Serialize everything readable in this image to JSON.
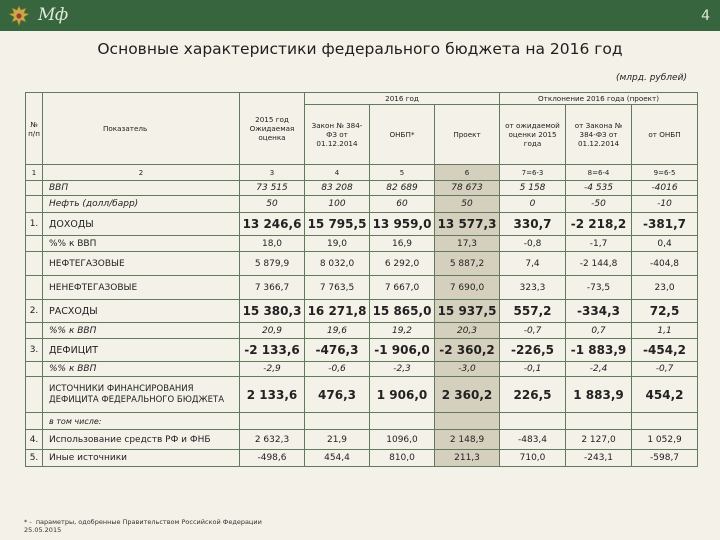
{
  "header": {
    "logo": "Мф",
    "page_number": "4"
  },
  "title": "Основные характеристики федерального бюджета на 2016 год",
  "units": "(млрд. рублей)",
  "table": {
    "col_no": "№ п/п",
    "col_indicator": "Показатель",
    "col_2015": "2015 год Ожидаемая оценка",
    "group_2016": "2016 год",
    "col_law": "Закон № 384-ФЗ от 01.12.2014",
    "col_onbp": "ОНБП*",
    "col_project": "Проект",
    "group_dev": "Отклонение 2016 года (проект)",
    "col_dev_est": "от ожидаемой оценки 2015 года",
    "col_dev_law": "от Закона № 384-ФЗ от 01.12.2014",
    "col_dev_onbp": "от ОНБП",
    "num_row": [
      "1",
      "2",
      "3",
      "4",
      "5",
      "6",
      "7=6-3",
      "8=6-4",
      "9=6-5"
    ],
    "rows": [
      {
        "no": "",
        "label": "ВВП",
        "v": [
          "73 515",
          "83 208",
          "82 689",
          "78 673",
          "5 158",
          "-4 535",
          "-4016"
        ]
      },
      {
        "no": "",
        "label": "Нефть (долл/барр)",
        "v": [
          "50",
          "100",
          "60",
          "50",
          "0",
          "-50",
          "-10"
        ]
      },
      {
        "no": "1.",
        "label": "ДОХОДЫ",
        "v": [
          "13 246,6",
          "15 795,5",
          "13 959,0",
          "13 577,3",
          "330,7",
          "-2 218,2",
          "-381,7"
        ]
      },
      {
        "no": "",
        "label": "%% к ВВП",
        "v": [
          "18,0",
          "19,0",
          "16,9",
          "17,3",
          "-0,8",
          "-1,7",
          "0,4"
        ]
      },
      {
        "no": "",
        "label": "НЕФТЕГАЗОВЫЕ",
        "v": [
          "5 879,9",
          "8 032,0",
          "6 292,0",
          "5 887,2",
          "7,4",
          "-2 144,8",
          "-404,8"
        ]
      },
      {
        "no": "",
        "label": "НЕНЕФТЕГАЗОВЫЕ",
        "v": [
          "7 366,7",
          "7 763,5",
          "7 667,0",
          "7 690,0",
          "323,3",
          "-73,5",
          "23,0"
        ]
      },
      {
        "no": "2.",
        "label": "РАСХОДЫ",
        "v": [
          "15 380,3",
          "16 271,8",
          "15 865,0",
          "15 937,5",
          "557,2",
          "-334,3",
          "72,5"
        ]
      },
      {
        "no": "",
        "label": "%% к ВВП",
        "v": [
          "20,9",
          "19,6",
          "19,2",
          "20,3",
          "-0,7",
          "0,7",
          "1,1"
        ]
      },
      {
        "no": "3.",
        "label": "ДЕФИЦИТ",
        "v": [
          "-2 133,6",
          "-476,3",
          "-1 906,0",
          "-2 360,2",
          "-226,5",
          "-1 883,9",
          "-454,2"
        ]
      },
      {
        "no": "",
        "label": "%% к ВВП",
        "v": [
          "-2,9",
          "-0,6",
          "-2,3",
          "-3,0",
          "-0,1",
          "-2,4",
          "-0,7"
        ]
      },
      {
        "no": "",
        "label": "ИСТОЧНИКИ ФИНАНСИРОВАНИЯ ДЕФИЦИТА ФЕДЕРАЛЬНОГО БЮДЖЕТА",
        "v": [
          "2 133,6",
          "476,3",
          "1 906,0",
          "2 360,2",
          "226,5",
          "1 883,9",
          "454,2"
        ]
      },
      {
        "no": "",
        "label": "в том числе:",
        "v": [
          "",
          "",
          "",
          "",
          "",
          "",
          ""
        ]
      },
      {
        "no": "4.",
        "label": "Использование средств РФ и ФНБ",
        "v": [
          "2 632,3",
          "21,9",
          "1096,0",
          "2 148,9",
          "-483,4",
          "2 127,0",
          "1 052,9"
        ]
      },
      {
        "no": "5.",
        "label": "Иные источники",
        "v": [
          "-498,6",
          "454,4",
          "810,0",
          "211,3",
          "710,0",
          "-243,1",
          "-598,7"
        ]
      }
    ]
  },
  "footer": {
    "note_mark": "* -",
    "note_text": "параметры, одобренные Правительством Российской Федерации",
    "date": "25.05.2015"
  }
}
